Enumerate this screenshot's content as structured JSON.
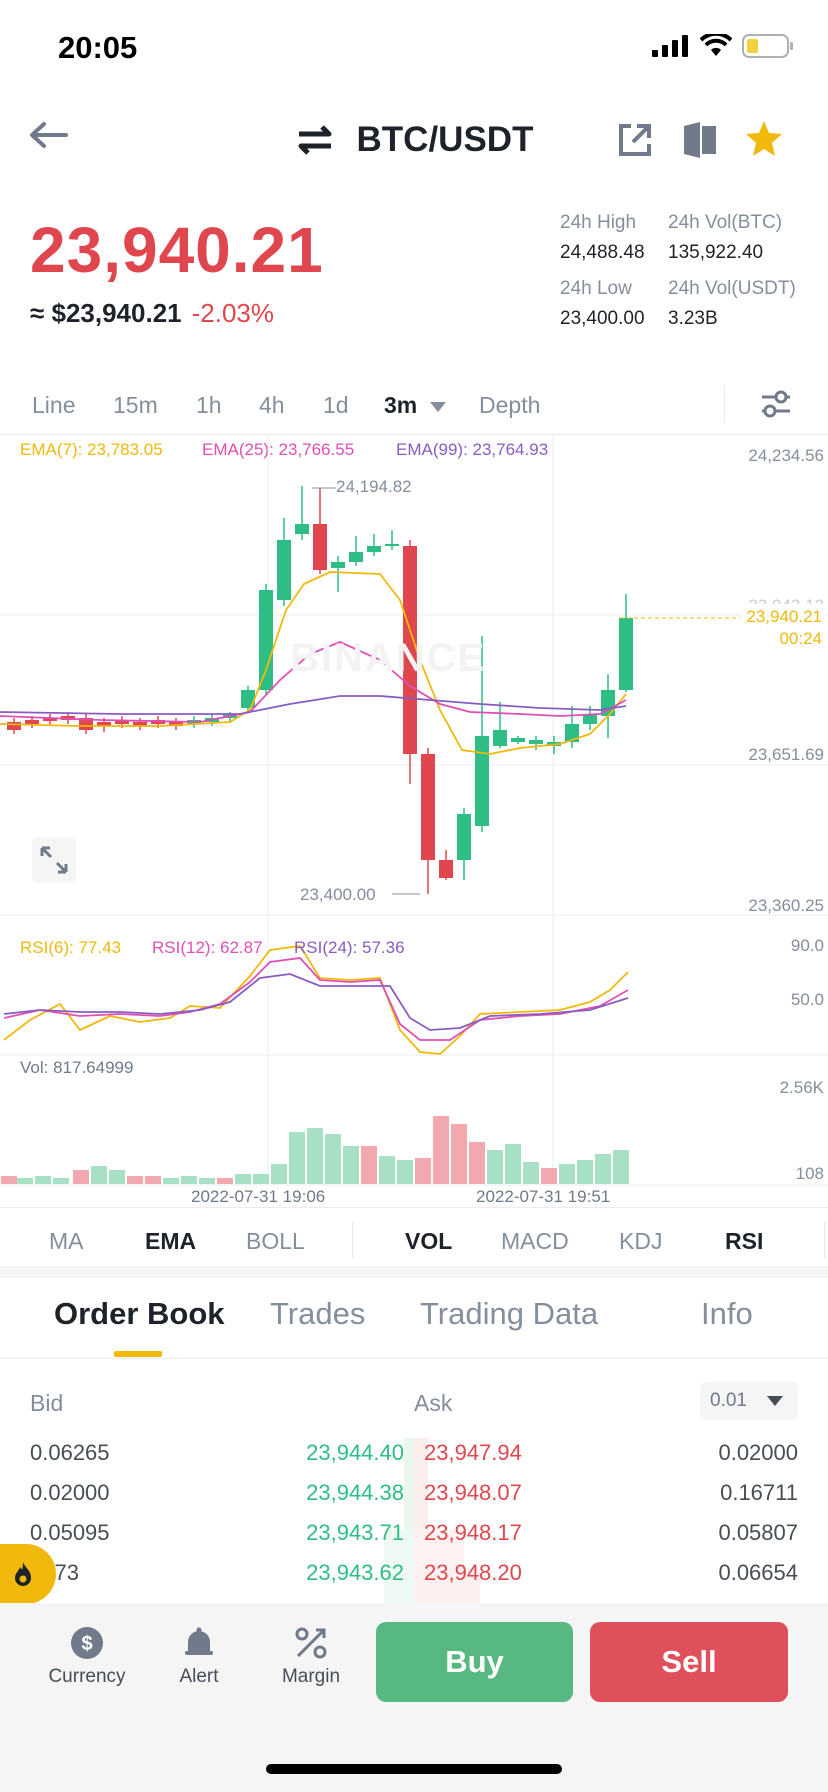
{
  "status_bar": {
    "time": "20:05"
  },
  "header": {
    "pair": "BTC/USDT"
  },
  "ticker": {
    "last_price": "23,940.21",
    "approx_usd": "≈ $23,940.21",
    "change": "-2.03%",
    "high_label": "24h High",
    "high": "24,488.48",
    "volbtc_label": "24h Vol(BTC)",
    "volbtc": "135,922.40",
    "low_label": "24h Low",
    "low": "23,400.00",
    "volusdt_label": "24h Vol(USDT)",
    "volusdt": "3.23B"
  },
  "timeframes": [
    "Line",
    "15m",
    "1h",
    "4h",
    "1d",
    "3m",
    "Depth"
  ],
  "active_timeframe": "3m",
  "ema_legend": {
    "ema7": "EMA(7): 23,783.05",
    "ema25": "EMA(25): 23,766.55",
    "ema99": "EMA(99): 23,764.93"
  },
  "price_axis": {
    "top": "24,234.56",
    "mid_hidden": "23,942.12",
    "current": "23,940.21",
    "countdown": "00:24",
    "low_mark": "23,651.69",
    "bottom": "23,360.25",
    "high_annotation": "24,194.82",
    "low_annotation": "23,400.00"
  },
  "watermark": "BINANCE",
  "rsi_legend": {
    "rsi6": "RSI(6): 77.43",
    "rsi12": "RSI(12): 62.87",
    "rsi24": "RSI(24): 57.36",
    "axis_top": "90.0",
    "axis_mid": "50.0"
  },
  "vol_legend": {
    "vol": "Vol: 817.64999",
    "axis_top": "2.56K",
    "axis_bottom": "108"
  },
  "time_axis": [
    "2022-07-31 19:06",
    "2022-07-31 19:51"
  ],
  "indicator_tabs": [
    "MA",
    "EMA",
    "BOLL",
    "VOL",
    "MACD",
    "KDJ",
    "RSI"
  ],
  "active_indicators": [
    "EMA",
    "VOL",
    "RSI"
  ],
  "orderbook_tabs": [
    "Order Book",
    "Trades",
    "Trading Data",
    "Info"
  ],
  "orderbook": {
    "bid_label": "Bid",
    "ask_label": "Ask",
    "precision": "0.01",
    "rows": [
      {
        "bid_qty": "0.06265",
        "bid_price": "23,944.40",
        "ask_price": "23,947.94",
        "ask_qty": "0.02000"
      },
      {
        "bid_qty": "0.02000",
        "bid_price": "23,944.38",
        "ask_price": "23,948.07",
        "ask_qty": "0.16711"
      },
      {
        "bid_qty": "0.05095",
        "bid_price": "23,943.71",
        "ask_price": "23,948.17",
        "ask_qty": "0.05807"
      },
      {
        "bid_qty": "2373",
        "bid_price": "23,943.62",
        "ask_price": "23,948.20",
        "ask_qty": "0.06654"
      }
    ]
  },
  "bottom_nav": {
    "currency": "Currency",
    "alert": "Alert",
    "margin": "Margin",
    "buy": "Buy",
    "sell": "Sell"
  },
  "colors": {
    "up": "#2ebd85",
    "down": "#e0464e",
    "ema7": "#f0b90b",
    "ema25": "#e04fb4",
    "ema99": "#8a5cc2",
    "accent": "#f0b90b"
  }
}
